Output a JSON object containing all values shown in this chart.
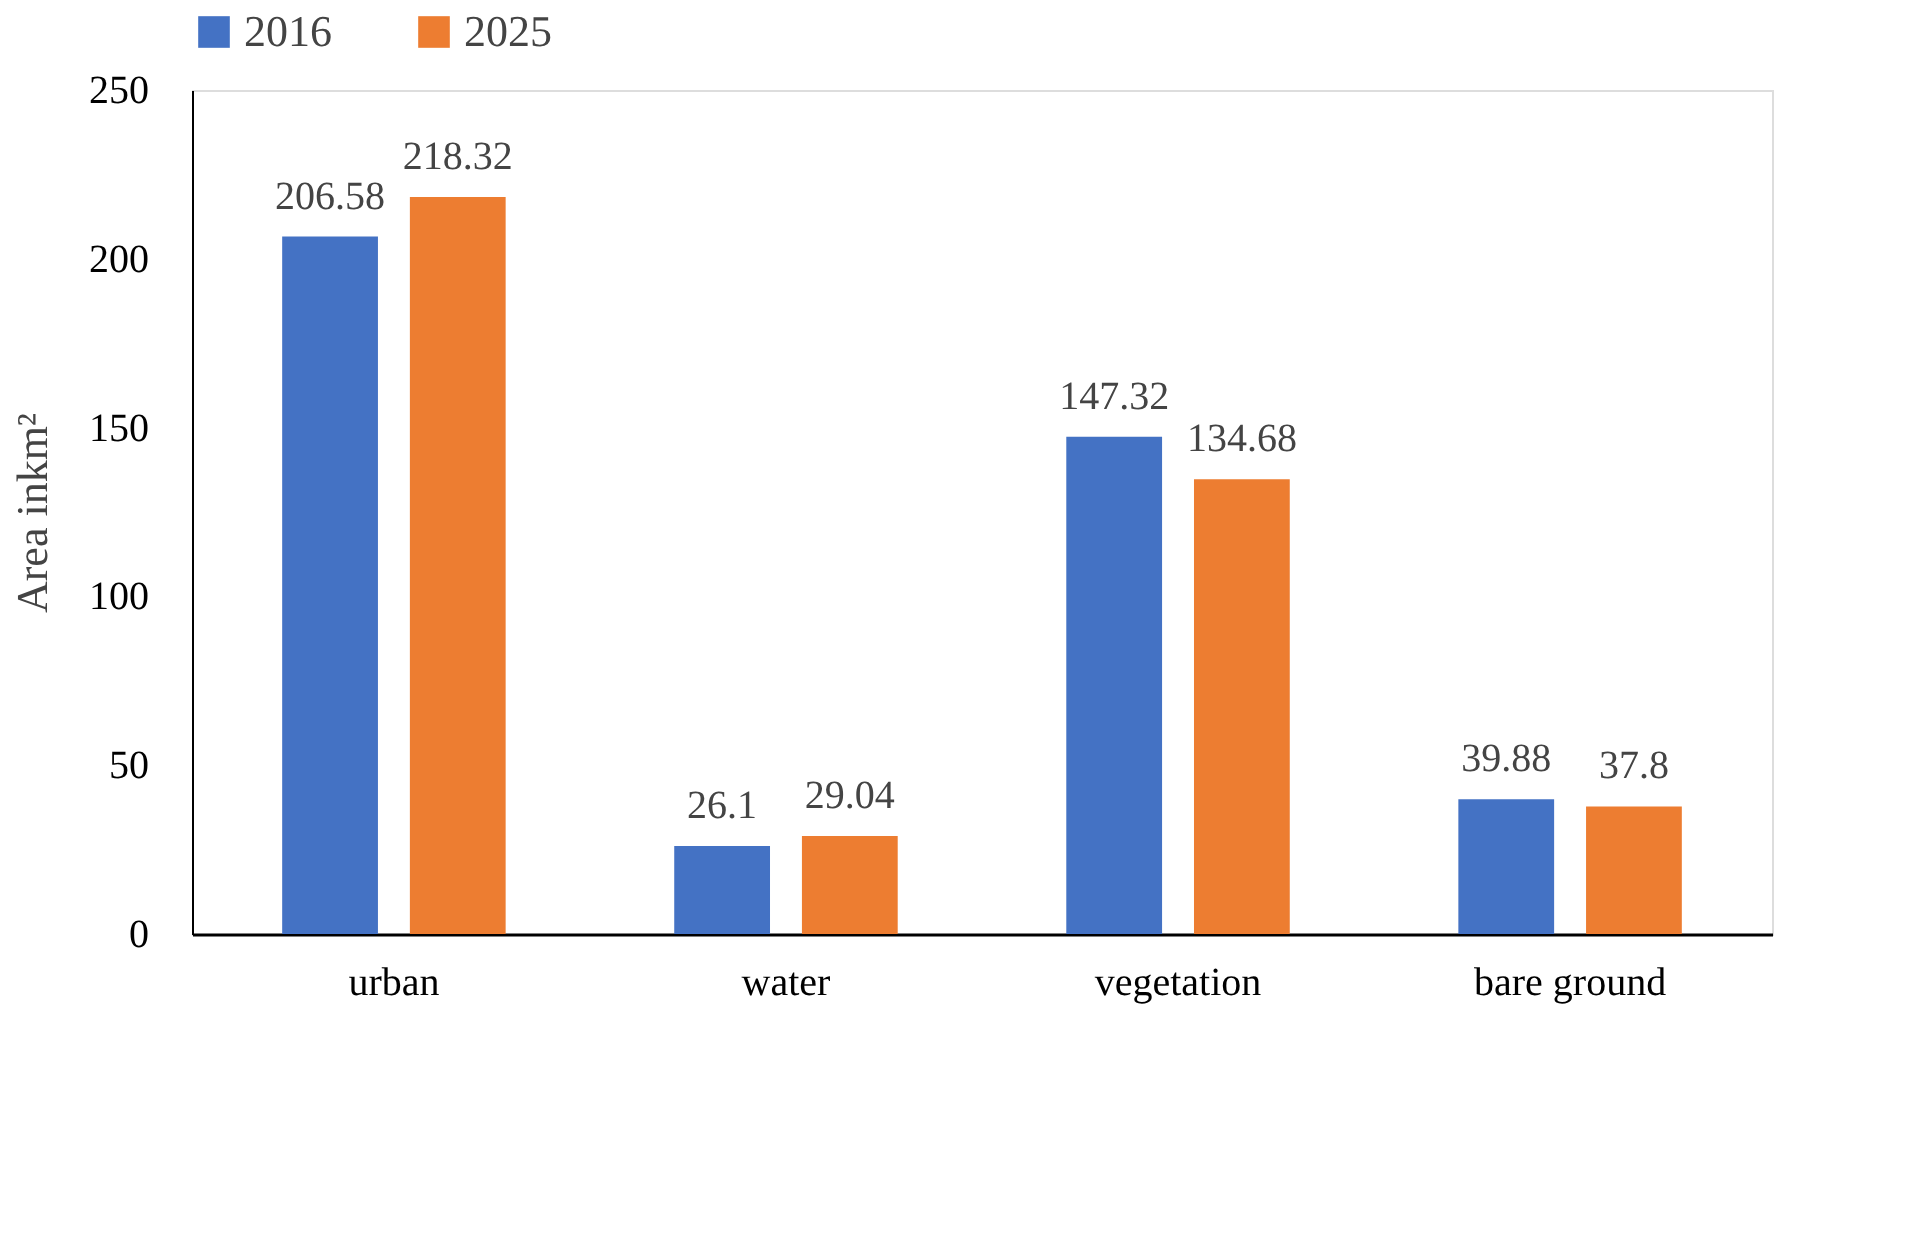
{
  "chart_data": {
    "type": "bar",
    "ylabel": "Area inkm²",
    "categories": [
      "urban",
      "water",
      "vegetation",
      "bare ground"
    ],
    "series": [
      {
        "name": "2016",
        "color": "#4472c4",
        "values": [
          206.58,
          26.1,
          147.32,
          39.88
        ]
      },
      {
        "name": "2025",
        "color": "#ed7d31",
        "values": [
          218.32,
          29.04,
          134.68,
          37.8
        ]
      }
    ],
    "ylim": [
      0,
      250
    ],
    "yticks": [
      0,
      50,
      100,
      150,
      200,
      250
    ],
    "grid": false,
    "legend": "top",
    "data_labels": true
  }
}
